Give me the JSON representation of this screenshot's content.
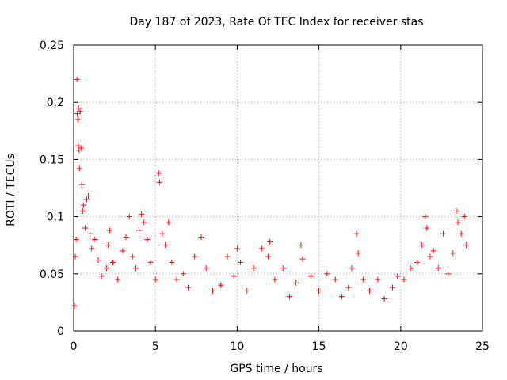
{
  "chart_data": {
    "type": "scatter",
    "title": "Day 187 of 2023, Rate Of TEC Index for receiver stas",
    "xlabel": "GPS time / hours",
    "ylabel": "ROTI / TECUs",
    "xlim": [
      0,
      25
    ],
    "ylim": [
      0,
      0.25
    ],
    "xticks": [
      0,
      5,
      10,
      15,
      20,
      25
    ],
    "yticks": [
      0,
      0.05,
      0.1,
      0.15,
      0.2,
      0.25
    ],
    "grid": true,
    "marker": "+",
    "marker_color": "#ff0000",
    "series": [
      {
        "name": "ROTI",
        "points": [
          [
            0.05,
            0.022
          ],
          [
            0.1,
            0.065
          ],
          [
            0.15,
            0.08
          ],
          [
            0.2,
            0.22
          ],
          [
            0.22,
            0.19
          ],
          [
            0.25,
            0.185
          ],
          [
            0.28,
            0.162
          ],
          [
            0.3,
            0.195
          ],
          [
            0.33,
            0.158
          ],
          [
            0.35,
            0.142
          ],
          [
            0.4,
            0.192
          ],
          [
            0.45,
            0.16
          ],
          [
            0.5,
            0.128
          ],
          [
            0.55,
            0.105
          ],
          [
            0.6,
            0.11
          ],
          [
            0.7,
            0.09
          ],
          [
            0.8,
            0.115
          ],
          [
            0.9,
            0.118
          ],
          [
            1.0,
            0.085
          ],
          [
            1.1,
            0.072
          ],
          [
            1.3,
            0.08
          ],
          [
            1.5,
            0.062
          ],
          [
            1.7,
            0.048
          ],
          [
            2.0,
            0.055
          ],
          [
            2.1,
            0.075
          ],
          [
            2.2,
            0.088
          ],
          [
            2.4,
            0.06
          ],
          [
            2.7,
            0.045
          ],
          [
            3.0,
            0.07
          ],
          [
            3.2,
            0.082
          ],
          [
            3.4,
            0.1
          ],
          [
            3.6,
            0.065
          ],
          [
            3.8,
            0.055
          ],
          [
            4.0,
            0.088
          ],
          [
            4.15,
            0.102
          ],
          [
            4.3,
            0.095
          ],
          [
            4.5,
            0.08
          ],
          [
            4.7,
            0.06
          ],
          [
            5.0,
            0.045
          ],
          [
            5.2,
            0.138
          ],
          [
            5.25,
            0.13
          ],
          [
            5.4,
            0.085
          ],
          [
            5.6,
            0.075
          ],
          [
            5.8,
            0.095
          ],
          [
            6.0,
            0.06
          ],
          [
            6.3,
            0.045
          ],
          [
            6.7,
            0.05
          ],
          [
            7.0,
            0.038
          ],
          [
            7.4,
            0.065
          ],
          [
            7.8,
            0.082
          ],
          [
            8.1,
            0.055
          ],
          [
            8.5,
            0.035
          ],
          [
            9.0,
            0.04
          ],
          [
            9.4,
            0.065
          ],
          [
            9.8,
            0.048
          ],
          [
            10.0,
            0.072
          ],
          [
            10.2,
            0.06
          ],
          [
            10.6,
            0.035
          ],
          [
            11.0,
            0.055
          ],
          [
            11.5,
            0.072
          ],
          [
            11.9,
            0.065
          ],
          [
            12.0,
            0.078
          ],
          [
            12.3,
            0.045
          ],
          [
            12.8,
            0.055
          ],
          [
            13.2,
            0.03
          ],
          [
            13.6,
            0.042
          ],
          [
            13.9,
            0.075
          ],
          [
            14.0,
            0.063
          ],
          [
            14.5,
            0.048
          ],
          [
            15.0,
            0.035
          ],
          [
            15.5,
            0.05
          ],
          [
            16.0,
            0.045
          ],
          [
            16.4,
            0.03
          ],
          [
            16.8,
            0.038
          ],
          [
            17.0,
            0.055
          ],
          [
            17.3,
            0.085
          ],
          [
            17.4,
            0.068
          ],
          [
            17.7,
            0.045
          ],
          [
            18.1,
            0.035
          ],
          [
            18.6,
            0.045
          ],
          [
            19.0,
            0.028
          ],
          [
            19.5,
            0.038
          ],
          [
            19.8,
            0.048
          ],
          [
            20.2,
            0.045
          ],
          [
            20.6,
            0.055
          ],
          [
            21.0,
            0.06
          ],
          [
            21.3,
            0.075
          ],
          [
            21.5,
            0.1
          ],
          [
            21.6,
            0.09
          ],
          [
            21.8,
            0.065
          ],
          [
            22.0,
            0.07
          ],
          [
            22.3,
            0.055
          ],
          [
            22.6,
            0.085
          ],
          [
            22.9,
            0.05
          ],
          [
            23.2,
            0.068
          ],
          [
            23.4,
            0.105
          ],
          [
            23.5,
            0.095
          ],
          [
            23.7,
            0.085
          ],
          [
            23.9,
            0.1
          ],
          [
            24.0,
            0.075
          ]
        ]
      }
    ]
  }
}
